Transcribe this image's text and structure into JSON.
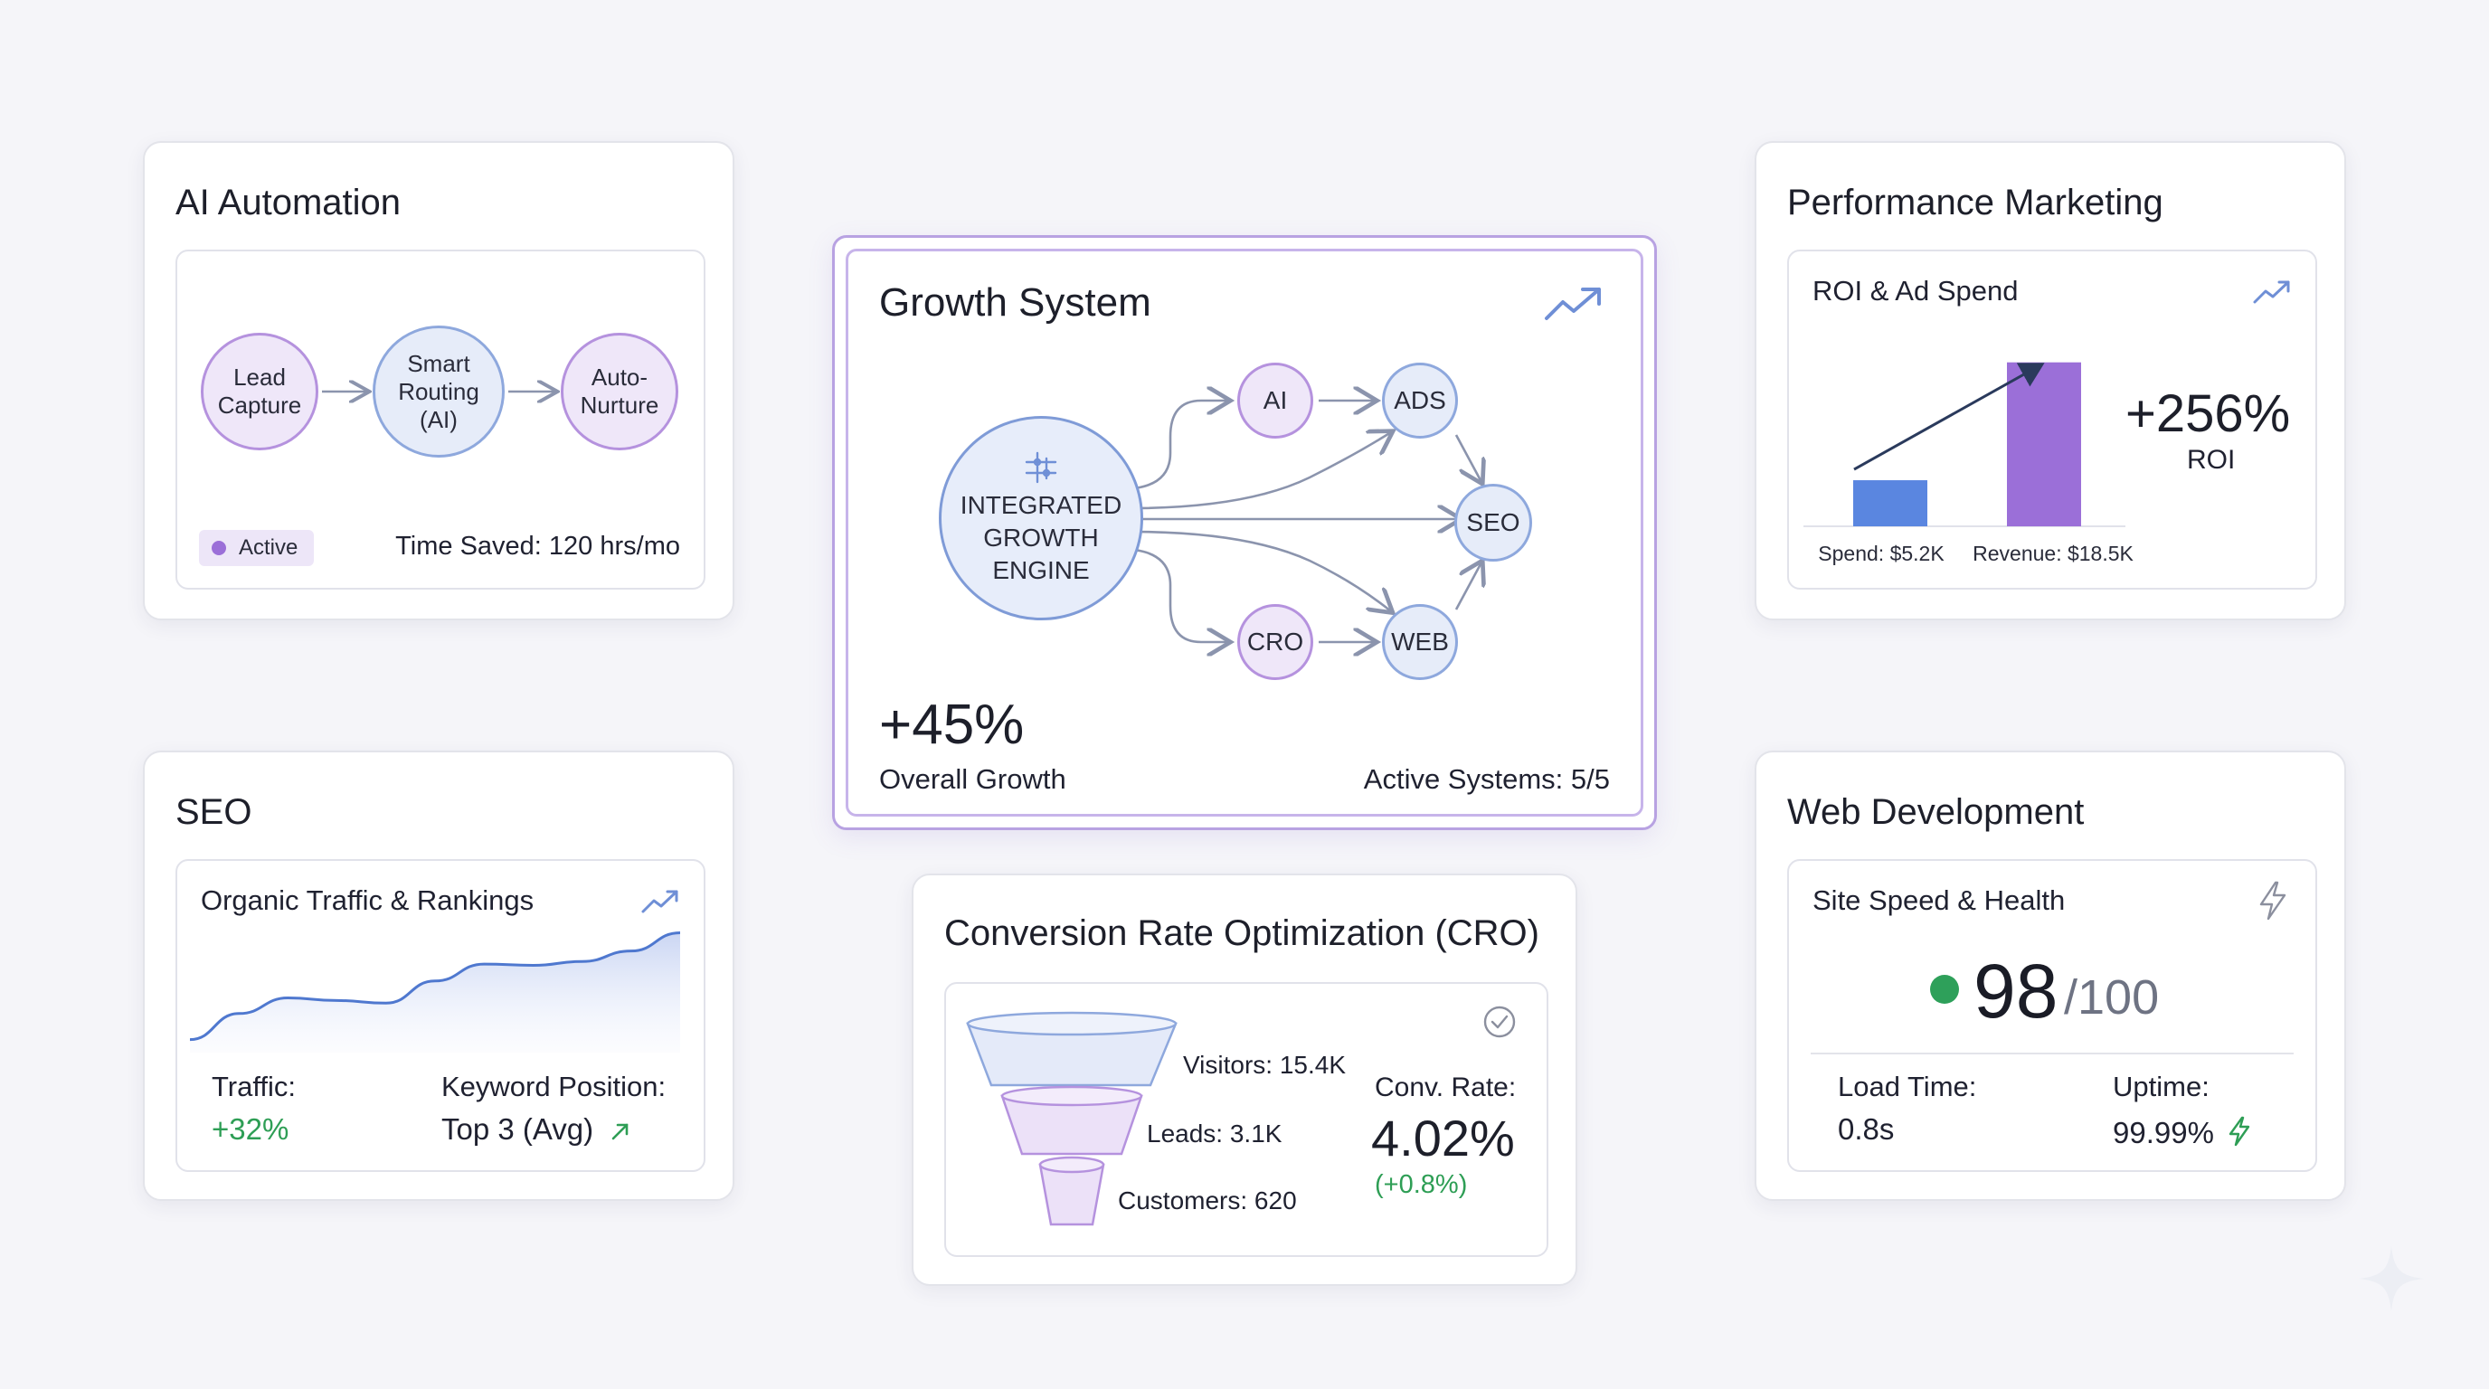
{
  "colors": {
    "purple": "#9b6fd8",
    "blue": "#5a86e0",
    "green": "#2e9e55",
    "node_blue_border": "#8ea8dd",
    "node_purple_border": "#b592de",
    "arrow": "#8b94ad"
  },
  "ai_automation": {
    "title": "AI Automation",
    "nodes": [
      "Lead\nCapture",
      "Smart\nRouting\n(AI)",
      "Auto-\nNurture"
    ],
    "status": "Active",
    "time_saved": "Time Saved: 120 hrs/mo"
  },
  "growth_system": {
    "title": "Growth System",
    "engine": "INTEGRATED\nGROWTH\nENGINE",
    "nodes": {
      "ai": "AI",
      "ads": "ADS",
      "seo": "SEO",
      "cro": "CRO",
      "web": "WEB"
    },
    "growth_value": "+45%",
    "growth_label": "Overall Growth",
    "active_systems": "Active Systems: 5/5",
    "icons": [
      "trend-up-icon",
      "network-icon"
    ]
  },
  "performance_marketing": {
    "title": "Performance Marketing",
    "subtitle": "ROI & Ad Spend",
    "roi_value": "+256%",
    "roi_label": "ROI",
    "chart_data": {
      "type": "bar",
      "categories": [
        "Spend: $5.2K",
        "Revenue: $18.5K"
      ],
      "values": [
        5.2,
        18.5
      ],
      "colors": [
        "#5a86e0",
        "#9b6fd8"
      ],
      "ylim": [
        0,
        20
      ]
    }
  },
  "seo": {
    "title": "SEO",
    "subtitle": "Organic Traffic & Rankings",
    "traffic_label": "Traffic:",
    "traffic_value": "+32%",
    "keyword_label": "Keyword Position:",
    "keyword_value": "Top 3 (Avg)",
    "chart_data": {
      "type": "area",
      "x": [
        0,
        1,
        2,
        3,
        4,
        5,
        6,
        7,
        8,
        9,
        10
      ],
      "values": [
        10,
        30,
        42,
        40,
        38,
        55,
        68,
        67,
        70,
        78,
        92
      ],
      "ylim": [
        0,
        100
      ]
    }
  },
  "cro": {
    "title": "Conversion Rate Optimization (CRO)",
    "funnel": [
      "Visitors: 15.4K",
      "Leads: 3.1K",
      "Customers: 620"
    ],
    "conv_label": "Conv. Rate:",
    "conv_value": "4.02%",
    "conv_delta": "(+0.8%)"
  },
  "web_dev": {
    "title": "Web Development",
    "subtitle": "Site Speed & Health",
    "score": "98",
    "score_max": "/100",
    "load_label": "Load Time:",
    "load_value": "0.8s",
    "uptime_label": "Uptime:",
    "uptime_value": "99.99%"
  }
}
